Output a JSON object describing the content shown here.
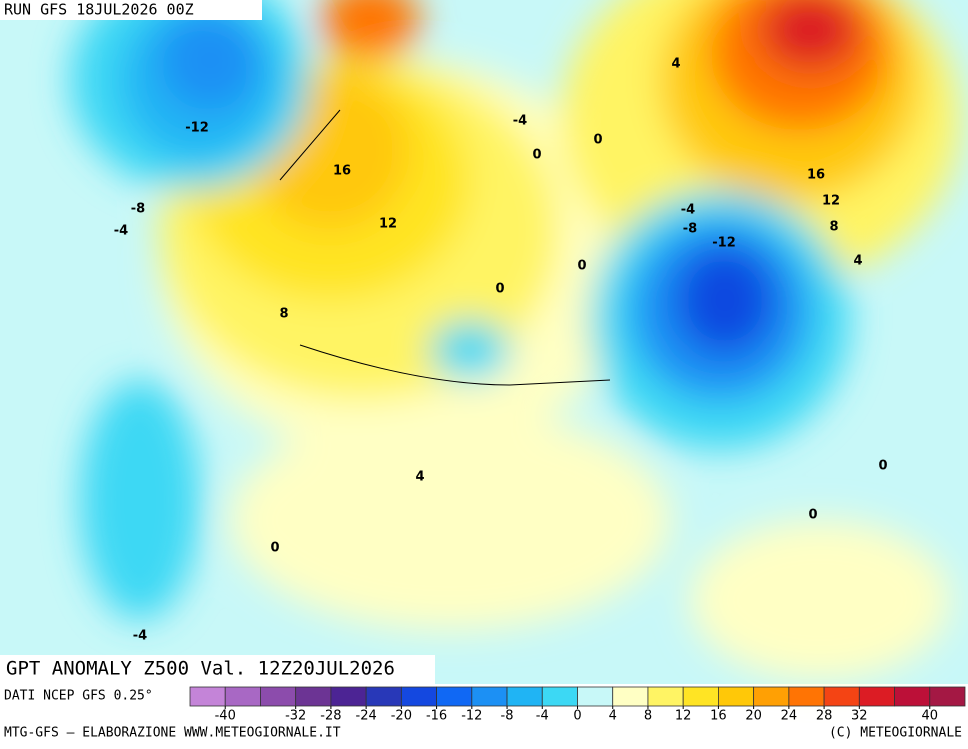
{
  "header": {
    "run": "RUN GFS 18JUL2026 00Z"
  },
  "map": {
    "title": "GPT ANOMALY Z500 Val. 12Z20JUL2026",
    "contour_labels": [
      -12,
      16,
      -8,
      -4,
      12,
      -4,
      0,
      0,
      0,
      0,
      4,
      -4,
      -8,
      -12,
      16,
      12,
      8,
      4,
      8,
      4,
      0,
      0,
      0,
      -4
    ]
  },
  "colorbar": {
    "source": "DATI NCEP GFS 0.25°",
    "range": [
      -44,
      44
    ],
    "colors": [
      "#c484d8",
      "#a868c4",
      "#8c4cac",
      "#6c3494",
      "#4c2494",
      "#2838b8",
      "#1448e0",
      "#1068f4",
      "#1c90f4",
      "#20b4f4",
      "#3cd8f4",
      "#c8f8f8",
      "#ffffc4",
      "#fff464",
      "#ffe424",
      "#ffc808",
      "#ffa004",
      "#ff7404",
      "#f44414",
      "#dc1c24",
      "#bc1038",
      "#a41844"
    ],
    "ticks": [
      -40,
      -32,
      -28,
      -24,
      -20,
      -16,
      -12,
      -8,
      -4,
      0,
      4,
      8,
      12,
      16,
      20,
      24,
      28,
      32,
      40
    ]
  },
  "footer": {
    "left": "MTG-GFS — ELABORAZIONE WWW.METEOGIORNALE.IT",
    "right": "(C) METEOGIORNALE"
  }
}
